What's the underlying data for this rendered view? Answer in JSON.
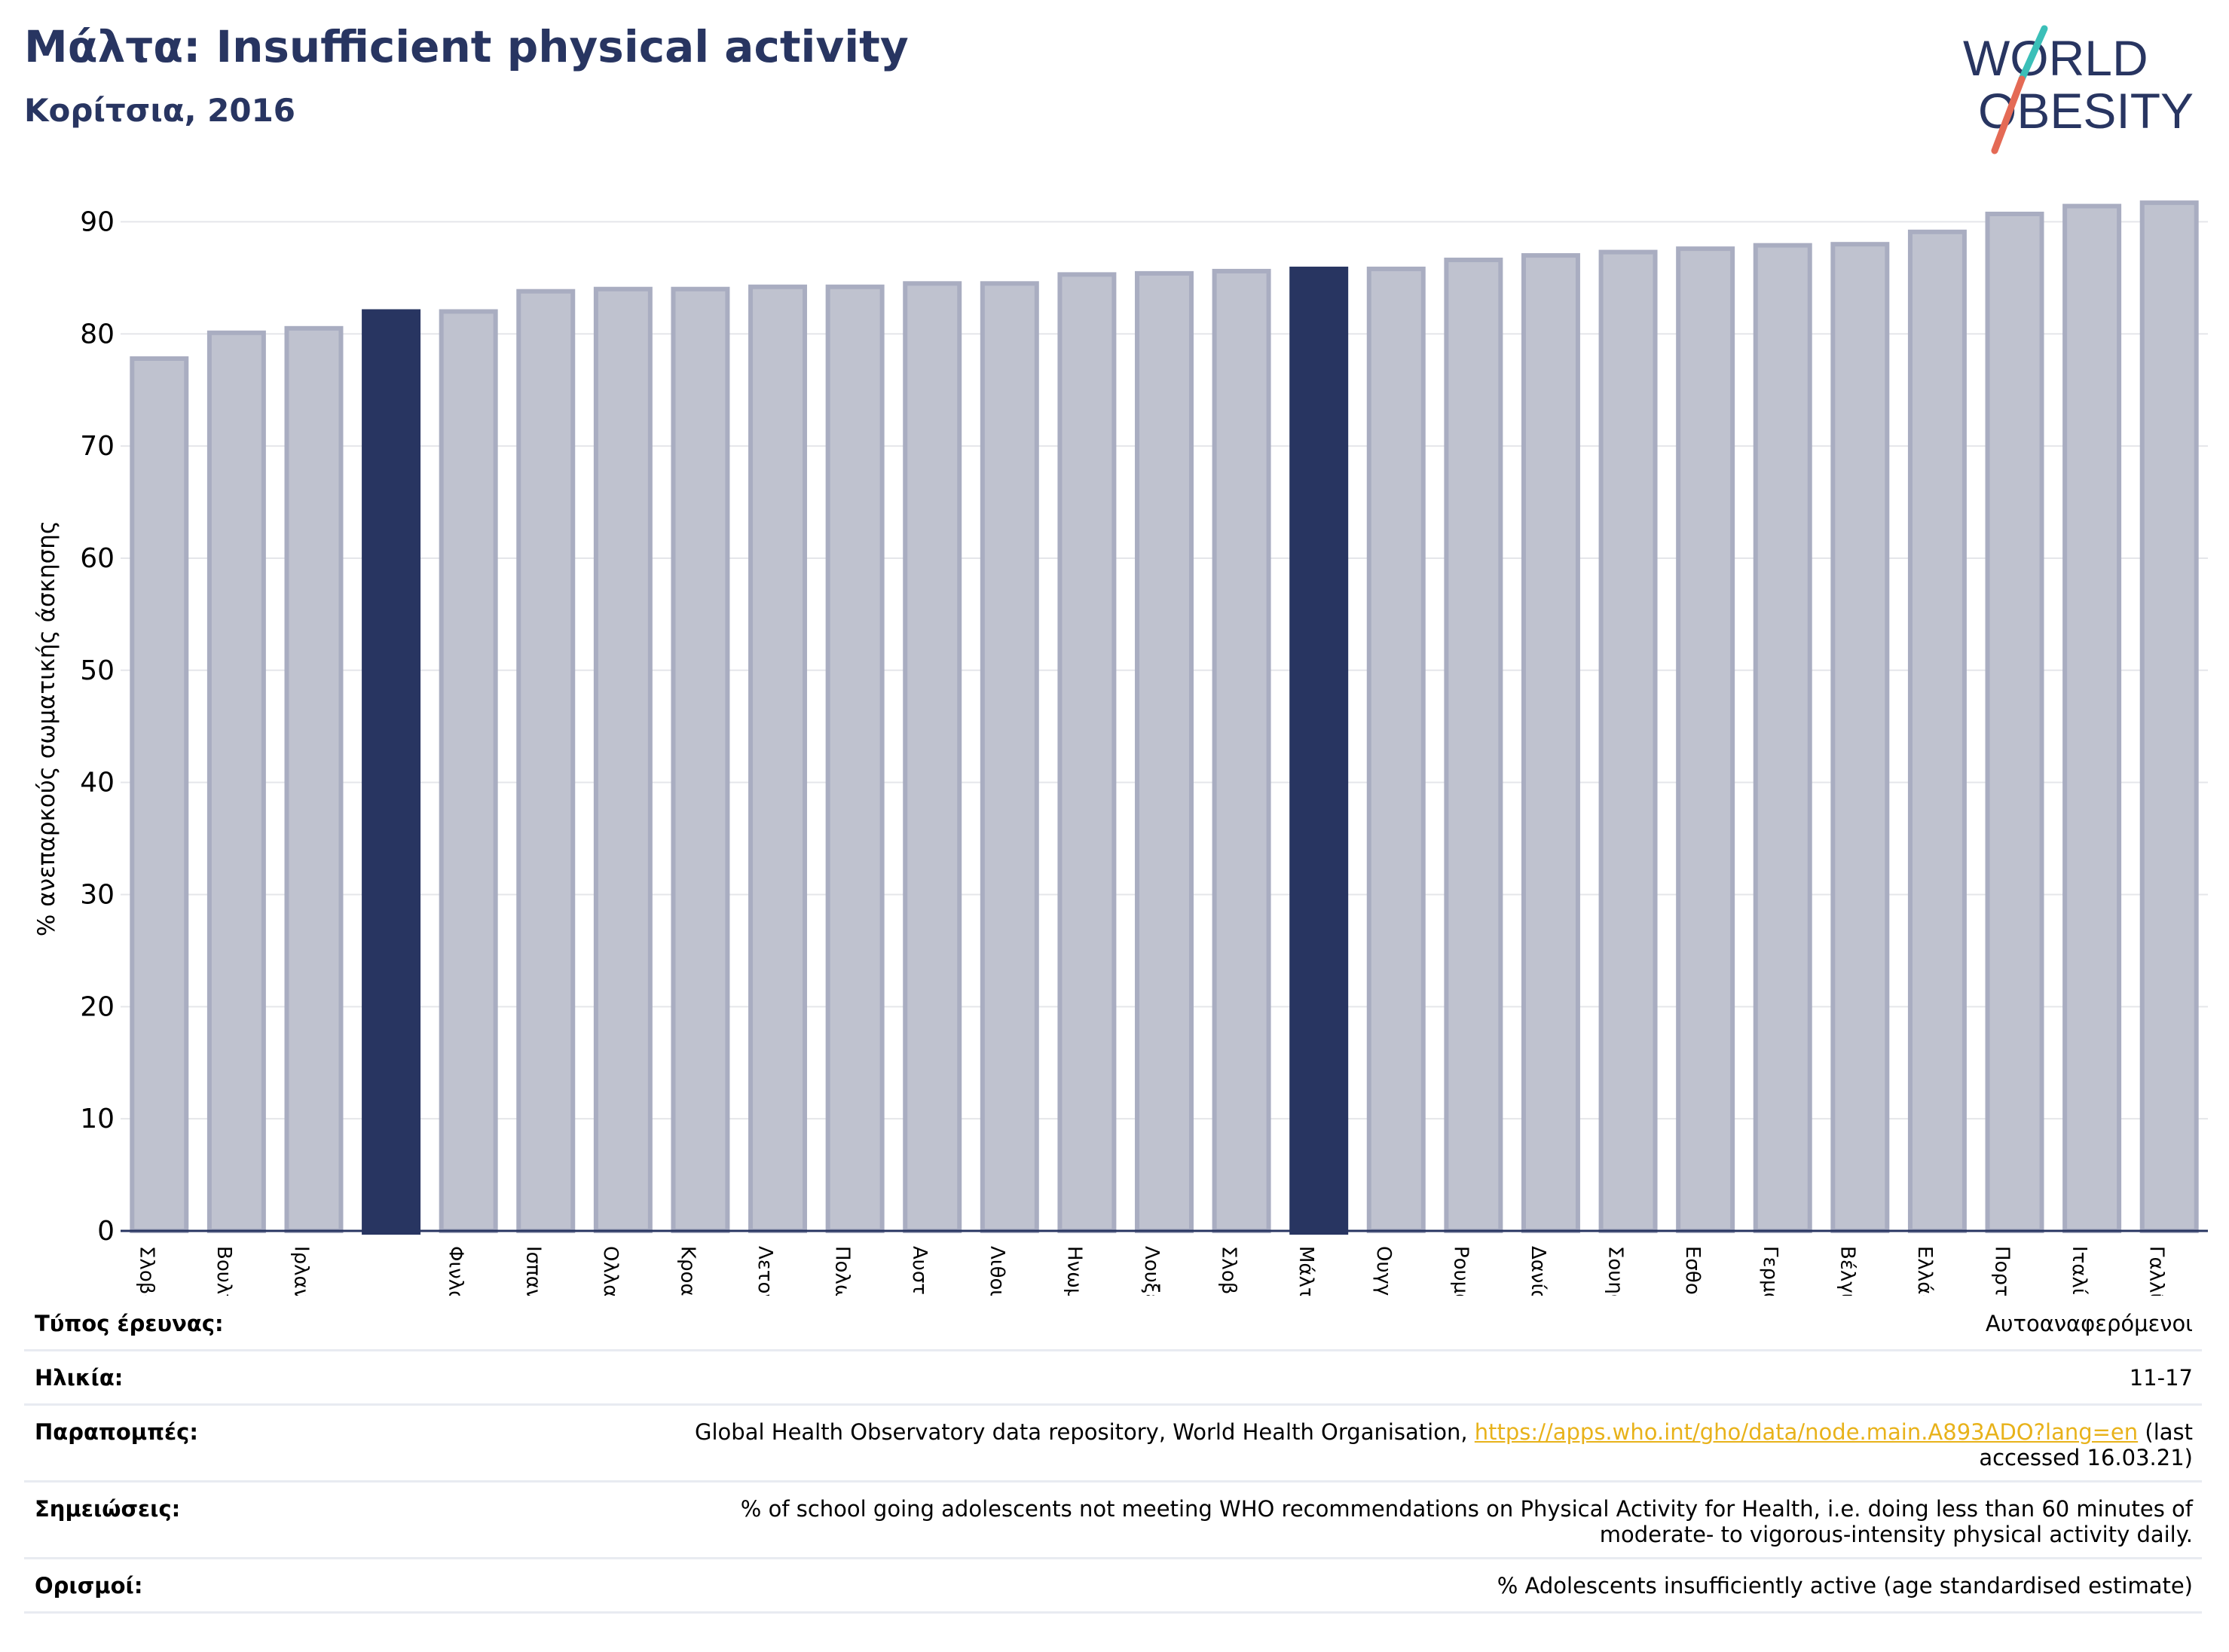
{
  "header": {
    "title": "Μάλτα: Insufficient physical activity",
    "subtitle": "Κορίτσια, 2016"
  },
  "logo": {
    "line1": "WORLD",
    "line2": "OBESITY",
    "colors": {
      "text": "#283561",
      "slash_top": "#3bbfb8",
      "slash_bottom": "#e46a55"
    }
  },
  "colors": {
    "highlight_bar": "#283561",
    "other_bar_fill": "#bfc2cf",
    "other_bar_stroke": "#a9adc1",
    "grid": "#e5e6ea",
    "axis": "#283561"
  },
  "chart_data": {
    "type": "bar",
    "ylabel": "% ανεπαρκούς σωματικής άσκησης",
    "ylim": [
      0,
      95
    ],
    "yticks": [
      0,
      10,
      20,
      30,
      40,
      50,
      60,
      70,
      80,
      90
    ],
    "grid": true,
    "categories": [
      "Σλοβακία",
      "Βουλγαρία",
      "Ιρλανδία",
      "",
      "Φινλανδία",
      "Ισπανία",
      "Ολλανδία",
      "Κροατία",
      "Λετονία",
      "Πολωνία",
      "Αυστρία",
      "Λιθουανία",
      "Ηνωμένο Βασίλειο",
      "Λουξεμβούργο",
      "Σλοβενία",
      "Μάλτα",
      "Ουγγαρία",
      "Ρουμανία",
      "Δανία",
      "Σουηδία",
      "Εσθονία",
      "Γερμανία",
      "Βέλγιο",
      "Ελλάδα",
      "Πορτογαλία",
      "Ιταλία",
      "Γαλλία"
    ],
    "values": [
      77.8,
      80.1,
      80.5,
      82.2,
      82.0,
      83.8,
      84.0,
      84.0,
      84.2,
      84.2,
      84.5,
      84.5,
      85.3,
      85.4,
      85.6,
      86.0,
      85.8,
      86.6,
      87.0,
      87.3,
      87.6,
      87.9,
      88.0,
      89.1,
      90.7,
      91.4,
      91.7
    ],
    "highlight": [
      3,
      15
    ]
  },
  "footer": {
    "rows": [
      {
        "label": "Τύπος έρευνας:",
        "value": "Αυτοαναφερόμενοι"
      },
      {
        "label": "Ηλικία:",
        "value": "11-17"
      },
      {
        "label": "Παραπομπές:",
        "value_pre": "Global Health Observatory data repository, World Health Organisation, ",
        "link": "https://apps.who.int/gho/data/node.main.A893ADO?lang=en",
        "value_post": " (last accessed 16.03.21)"
      },
      {
        "label": "Σημειώσεις:",
        "value": "% of school going adolescents not meeting WHO recommendations on Physical Activity for Health, i.e. doing less than 60 minutes of moderate- to vigorous-intensity physical activity daily."
      },
      {
        "label": "Ορισμοί:",
        "value": "% Adolescents insufficiently active (age standardised estimate)"
      }
    ]
  }
}
